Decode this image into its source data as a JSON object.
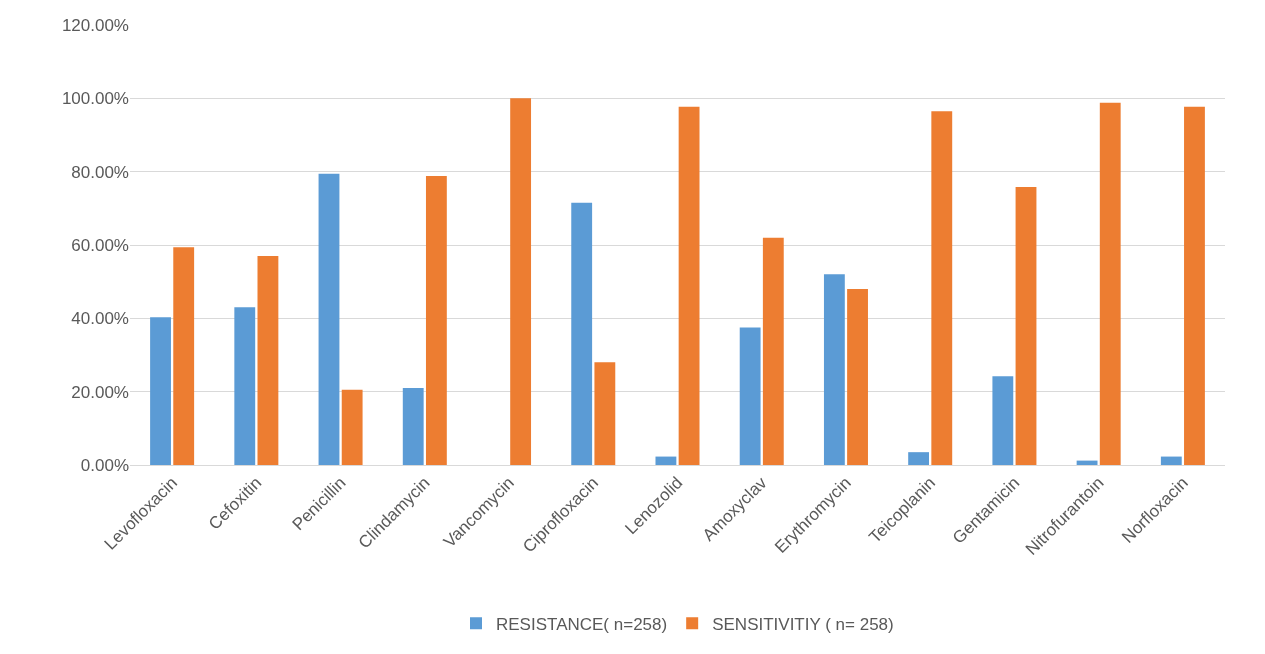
{
  "chart_data": {
    "type": "bar",
    "categories": [
      "Levofloxacin",
      "Cefoxitin",
      "Penicillin",
      "Clindamycin",
      "Vancomycin",
      "Ciprofloxacin",
      "Lenozolid",
      "Amoxyclav",
      "Erythromycin",
      "Teicoplanin",
      "Gentamicin",
      "Nitrofurantoin",
      "Norfloxacin"
    ],
    "series": [
      {
        "name": "RESISTANCE( n=258)",
        "color": "#5b9bd5",
        "values": [
          40.3,
          43,
          79.4,
          21,
          0,
          71.5,
          2.3,
          37.5,
          52,
          3.5,
          24.2,
          1.2,
          2.3
        ]
      },
      {
        "name": "SENSITIVITIY ( n= 258)",
        "color": "#ed7d31",
        "values": [
          59.4,
          57,
          20.5,
          78.8,
          100,
          28,
          97.7,
          62,
          48,
          96.5,
          75.8,
          98.8,
          97.7
        ]
      }
    ],
    "ylim": [
      0,
      120
    ],
    "yticks": [
      {
        "value": 0,
        "label": "0.00%"
      },
      {
        "value": 20,
        "label": "20.00%"
      },
      {
        "value": 40,
        "label": "40.00%"
      },
      {
        "value": 60,
        "label": "60.00%"
      },
      {
        "value": 80,
        "label": "80.00%"
      },
      {
        "value": 100,
        "label": "100.00%"
      },
      {
        "value": 120,
        "label": "120.00%"
      }
    ],
    "grid": "y",
    "legend": "bottom"
  }
}
